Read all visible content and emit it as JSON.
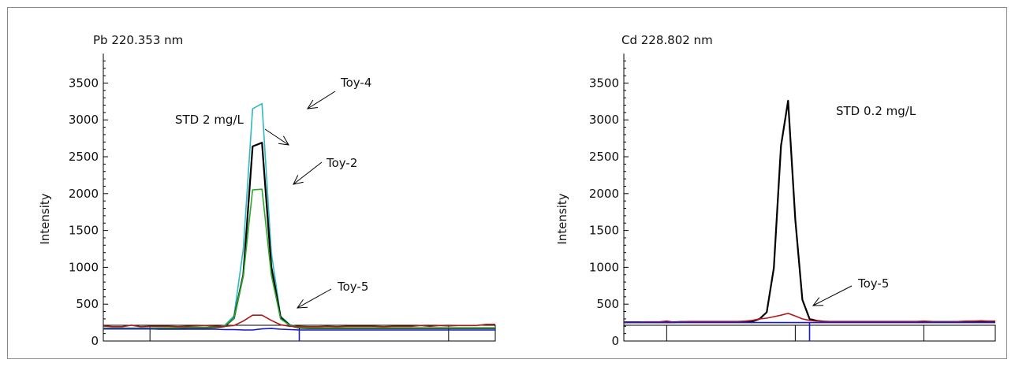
{
  "chart_data": [
    {
      "type": "line",
      "title": "Pb 220.353 nm",
      "ylabel": "Intensity",
      "ylim": [
        0,
        3900
      ],
      "yticks": [
        0,
        500,
        1000,
        1500,
        2000,
        2500,
        3000,
        3500
      ],
      "x": [
        1,
        2,
        3,
        4,
        5,
        6,
        7,
        8,
        9,
        10,
        11,
        12,
        13,
        14,
        15,
        16,
        17,
        18,
        19,
        20,
        21,
        22,
        23,
        24,
        25,
        26,
        27,
        28,
        29,
        30,
        31,
        32,
        33,
        34,
        35,
        36,
        37,
        38,
        39,
        40,
        41,
        42,
        43
      ],
      "xlim": [
        1,
        43
      ],
      "major_ticks_x": [
        6,
        22,
        38
      ],
      "marker_x": 22,
      "series": [
        {
          "name": "Toy-4",
          "color": "#30b8c0",
          "values": [
            170,
            170,
            170,
            170,
            170,
            170,
            175,
            175,
            175,
            180,
            180,
            185,
            190,
            210,
            340,
            1250,
            3150,
            3220,
            1200,
            340,
            220,
            190,
            180,
            180,
            180,
            180,
            180,
            180,
            180,
            180,
            180,
            180,
            180,
            180,
            180,
            180,
            180,
            180,
            180,
            180,
            180,
            180,
            180
          ]
        },
        {
          "name": "STD 2 mg/L",
          "color": "#000000",
          "values": [
            170,
            170,
            170,
            170,
            170,
            170,
            175,
            175,
            175,
            180,
            180,
            180,
            185,
            200,
            310,
            900,
            2640,
            2690,
            1010,
            320,
            210,
            180,
            175,
            175,
            175,
            175,
            175,
            175,
            175,
            175,
            175,
            175,
            175,
            175,
            175,
            175,
            175,
            175,
            175,
            175,
            175,
            175,
            175
          ]
        },
        {
          "name": "Toy-2",
          "color": "#2aa82a",
          "values": [
            175,
            175,
            175,
            175,
            175,
            175,
            180,
            180,
            180,
            185,
            185,
            185,
            190,
            205,
            310,
            880,
            2050,
            2060,
            900,
            300,
            210,
            185,
            180,
            180,
            180,
            180,
            180,
            180,
            180,
            180,
            180,
            180,
            180,
            180,
            180,
            180,
            180,
            180,
            180,
            180,
            180,
            180,
            180
          ]
        },
        {
          "name": "Toy-5",
          "color": "#b01818",
          "values": [
            205,
            195,
            195,
            215,
            195,
            200,
            200,
            200,
            195,
            200,
            205,
            210,
            200,
            200,
            210,
            270,
            350,
            350,
            280,
            220,
            200,
            200,
            195,
            195,
            200,
            195,
            200,
            200,
            200,
            200,
            195,
            200,
            200,
            200,
            210,
            200,
            210,
            205,
            210,
            210,
            210,
            225,
            225
          ]
        },
        {
          "name": "",
          "color": "#1a1ac8",
          "values": [
            165,
            165,
            165,
            165,
            165,
            165,
            160,
            160,
            160,
            160,
            160,
            160,
            160,
            155,
            155,
            150,
            150,
            165,
            170,
            160,
            155,
            150,
            150,
            150,
            150,
            150,
            150,
            150,
            150,
            150,
            150,
            150,
            150,
            150,
            150,
            150,
            150,
            150,
            150,
            150,
            150,
            150,
            150
          ]
        }
      ],
      "annotations": [
        {
          "text": "Toy-4",
          "series": "Toy-4"
        },
        {
          "text": "STD 2 mg/L",
          "series": "STD 2 mg/L"
        },
        {
          "text": "Toy-2",
          "series": "Toy-2"
        },
        {
          "text": "Toy-5",
          "series": "Toy-5"
        }
      ]
    },
    {
      "type": "line",
      "title": "Cd 228.802 nm",
      "ylabel": "Intensity",
      "ylim": [
        0,
        3900
      ],
      "yticks": [
        0,
        500,
        1000,
        1500,
        2000,
        2500,
        3000,
        3500
      ],
      "x": [
        1,
        2,
        3,
        4,
        5,
        6,
        7,
        8,
        9,
        10,
        11,
        12,
        13,
        14,
        15,
        16,
        17,
        18,
        19,
        20,
        21,
        22,
        23,
        24,
        25,
        26,
        27,
        28,
        29,
        30,
        31,
        32,
        33,
        34,
        35,
        36,
        37,
        38,
        39,
        40,
        41,
        42,
        43,
        44,
        45,
        46,
        47,
        48,
        49,
        50,
        51,
        52,
        53
      ],
      "xlim": [
        1,
        53
      ],
      "major_ticks_x": [
        7,
        25,
        43
      ],
      "marker_x": 27,
      "series": [
        {
          "name": "STD 0.2 mg/L",
          "color": "#000000",
          "values": [
            255,
            255,
            255,
            255,
            255,
            255,
            255,
            255,
            260,
            260,
            260,
            260,
            260,
            260,
            260,
            260,
            260,
            260,
            265,
            300,
            390,
            990,
            2650,
            3260,
            1650,
            560,
            300,
            275,
            265,
            260,
            260,
            260,
            260,
            260,
            260,
            260,
            260,
            260,
            260,
            260,
            260,
            260,
            260,
            260,
            260,
            260,
            260,
            260,
            260,
            260,
            260,
            260,
            260
          ]
        },
        {
          "name": "Toy-5",
          "color": "#b01818",
          "values": [
            255,
            255,
            255,
            260,
            260,
            260,
            270,
            255,
            260,
            265,
            265,
            265,
            265,
            265,
            265,
            265,
            265,
            270,
            280,
            300,
            310,
            330,
            350,
            375,
            340,
            300,
            280,
            270,
            265,
            265,
            265,
            265,
            265,
            265,
            265,
            265,
            265,
            265,
            265,
            265,
            265,
            265,
            270,
            265,
            260,
            260,
            260,
            265,
            270,
            270,
            275,
            270,
            270
          ]
        },
        {
          "name": "",
          "color": "#1a1ac8",
          "values": [
            250,
            250,
            250,
            250,
            250,
            250,
            250,
            250,
            250,
            250,
            250,
            250,
            250,
            250,
            250,
            250,
            250,
            250,
            250,
            250,
            250,
            250,
            250,
            250,
            250,
            250,
            250,
            250,
            250,
            250,
            250,
            250,
            250,
            250,
            250,
            250,
            250,
            250,
            250,
            250,
            250,
            250,
            250,
            250,
            250,
            250,
            250,
            250,
            250,
            250,
            250,
            250,
            250
          ]
        }
      ],
      "annotations": [
        {
          "text": "STD 0.2 mg/L",
          "series": "STD 0.2 mg/L"
        },
        {
          "text": "Toy-5",
          "series": "Toy-5"
        }
      ]
    }
  ]
}
